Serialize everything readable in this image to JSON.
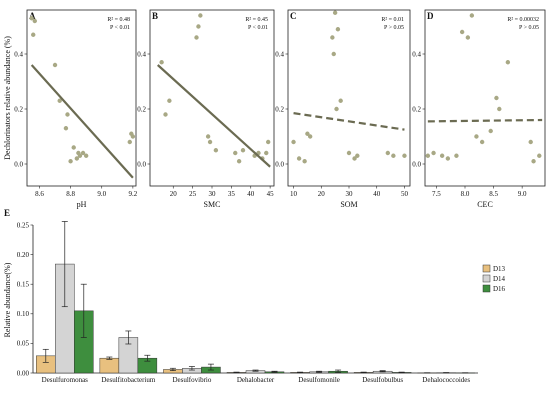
{
  "chart_data": [
    {
      "panel": "A",
      "type": "scatter",
      "xlabel": "pH",
      "ylabel": "Dechlorinators relative abundance (%)",
      "xlim": [
        8.52,
        9.22
      ],
      "ylim": [
        -0.08,
        0.56
      ],
      "xticks": [
        "8.6",
        "8.8",
        "9.0",
        "9.2"
      ],
      "yticks": [
        "0.0",
        "0.2",
        "0.4"
      ],
      "stats": [
        "R² = 0.48",
        "P < 0.01"
      ],
      "x": [
        8.55,
        8.56,
        8.57,
        8.7,
        8.73,
        8.77,
        8.78,
        8.8,
        8.82,
        8.84,
        8.85,
        8.86,
        8.88,
        8.9,
        9.18,
        9.19,
        9.2
      ],
      "y": [
        0.53,
        0.47,
        0.52,
        0.36,
        0.23,
        0.13,
        0.18,
        0.01,
        0.06,
        0.02,
        0.04,
        0.03,
        0.04,
        0.03,
        0.08,
        0.11,
        0.1
      ],
      "fit": {
        "x": [
          8.55,
          9.2
        ],
        "y": [
          0.36,
          -0.05
        ],
        "style": "solid"
      }
    },
    {
      "panel": "B",
      "type": "scatter",
      "xlabel": "SMC",
      "ylabel": "",
      "xlim": [
        14,
        46
      ],
      "ylim": [
        -0.08,
        0.56
      ],
      "xticks": [
        "20",
        "25",
        "30",
        "35",
        "40",
        "45"
      ],
      "yticks": [
        "0.0",
        "0.2",
        "0.4"
      ],
      "stats": [
        "R² = 0.45",
        "P < 0.01"
      ],
      "x": [
        17,
        18,
        19,
        26,
        26.5,
        27,
        29,
        29.5,
        31,
        36,
        37,
        38,
        41,
        42,
        43,
        44,
        44.5
      ],
      "y": [
        0.37,
        0.18,
        0.23,
        0.46,
        0.5,
        0.54,
        0.1,
        0.08,
        0.05,
        0.04,
        0.01,
        0.05,
        0.03,
        0.04,
        0.02,
        0.04,
        0.08
      ],
      "fit": {
        "x": [
          16,
          45
        ],
        "y": [
          0.36,
          -0.01
        ],
        "style": "solid"
      }
    },
    {
      "panel": "C",
      "type": "scatter",
      "xlabel": "SOM",
      "ylabel": "",
      "xlim": [
        8,
        52
      ],
      "ylim": [
        -0.08,
        0.56
      ],
      "xticks": [
        "10",
        "20",
        "30",
        "40",
        "50"
      ],
      "yticks": [
        "0.0",
        "0.2",
        "0.4"
      ],
      "stats": [
        "R² = 0.01",
        "P > 0.05"
      ],
      "x": [
        10,
        12,
        14,
        15,
        16,
        24,
        24.5,
        25,
        25.5,
        26,
        27,
        30,
        32,
        33,
        44,
        46,
        50
      ],
      "y": [
        0.08,
        0.02,
        0.01,
        0.11,
        0.1,
        0.46,
        0.4,
        0.55,
        0.2,
        0.49,
        0.23,
        0.04,
        0.02,
        0.03,
        0.04,
        0.03,
        0.03
      ],
      "fit": {
        "x": [
          10,
          50
        ],
        "y": [
          0.185,
          0.125
        ],
        "style": "dashed"
      }
    },
    {
      "panel": "D",
      "type": "scatter",
      "xlabel": "CEC",
      "ylabel": "",
      "xlim": [
        7.3,
        9.4
      ],
      "ylim": [
        -0.08,
        0.56
      ],
      "xticks": [
        "7.5",
        "8.0",
        "8.5",
        "9.0"
      ],
      "yticks": [
        "0.0",
        "0.2",
        "0.4"
      ],
      "stats": [
        "R² = 0.00032",
        "P > 0.05"
      ],
      "x": [
        7.35,
        7.45,
        7.6,
        7.7,
        7.85,
        7.95,
        8.05,
        8.12,
        8.2,
        8.3,
        8.45,
        8.55,
        8.6,
        8.75,
        9.15,
        9.2,
        9.3
      ],
      "y": [
        0.03,
        0.04,
        0.03,
        0.02,
        0.03,
        0.48,
        0.46,
        0.54,
        0.1,
        0.08,
        0.12,
        0.24,
        0.2,
        0.37,
        0.08,
        0.01,
        0.03
      ],
      "fit": {
        "x": [
          7.35,
          9.35
        ],
        "y": [
          0.155,
          0.16
        ],
        "style": "dashed"
      }
    },
    {
      "panel": "E",
      "type": "bar",
      "xlabel": "",
      "ylabel": "Relative abundance(%)",
      "ylim": [
        0,
        0.25
      ],
      "yticks": [
        "0.00",
        "0.05",
        "0.10",
        "0.15",
        "0.20",
        "0.25"
      ],
      "categories": [
        "Desulfuromonas",
        "Desulfitobacterium",
        "Desulfovibrio",
        "Dehalobacter",
        "Desulfomonile",
        "Desulfobulbus",
        "Dehalococcoides"
      ],
      "legend": "right",
      "series": [
        {
          "name": "D13",
          "color": "#e8c07f",
          "values": [
            0.029,
            0.025,
            0.006,
            0.001,
            0.001,
            0.001,
            0.0003
          ],
          "errors": [
            0.011,
            0.002,
            0.002,
            0.0005,
            0.0005,
            0.0005,
            0.0002
          ]
        },
        {
          "name": "D14",
          "color": "#d4d4d4",
          "values": [
            0.184,
            0.06,
            0.008,
            0.004,
            0.002,
            0.003,
            0.0005
          ],
          "errors": [
            0.072,
            0.011,
            0.003,
            0.001,
            0.001,
            0.001,
            0.0003
          ]
        },
        {
          "name": "D16",
          "color": "#3e8e3e",
          "values": [
            0.105,
            0.025,
            0.01,
            0.002,
            0.003,
            0.001,
            0.0003
          ],
          "errors": [
            0.045,
            0.005,
            0.005,
            0.001,
            0.002,
            0.0005,
            0.0002
          ]
        }
      ]
    }
  ],
  "style": {
    "point_color": "#a8a885",
    "fit_color": "#6b6b52"
  }
}
